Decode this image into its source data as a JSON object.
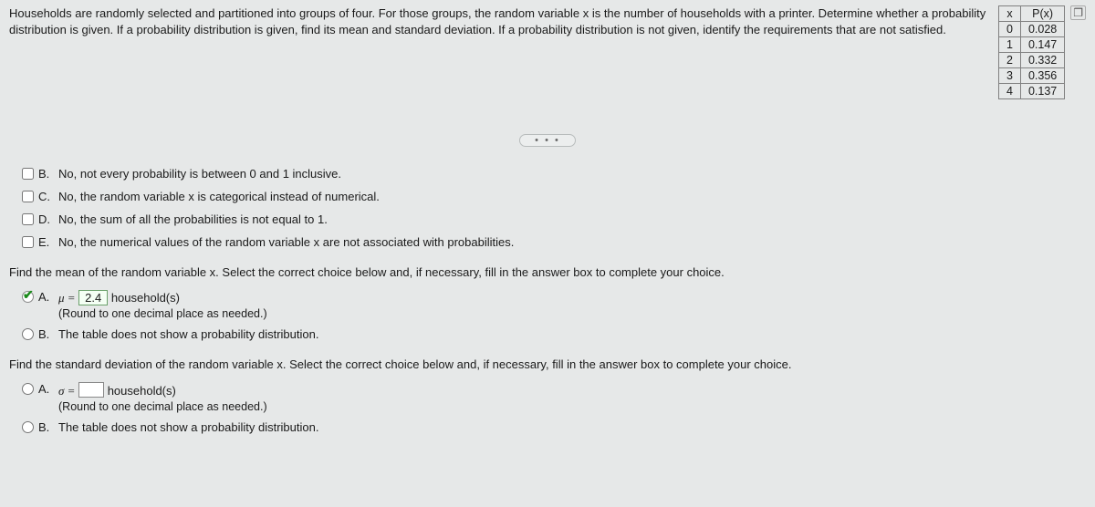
{
  "question": "Households are randomly selected and partitioned into groups of four. For those groups, the random variable x is the number of households with a printer. Determine whether a probability distribution is given. If a probability distribution is given, find its mean and standard deviation. If a probability distribution is not given, identify the requirements that are not satisfied.",
  "table": {
    "headers": {
      "x": "x",
      "px": "P(x)"
    },
    "rows": [
      {
        "x": "0",
        "px": "0.028"
      },
      {
        "x": "1",
        "px": "0.147"
      },
      {
        "x": "2",
        "px": "0.332"
      },
      {
        "x": "3",
        "px": "0.356"
      },
      {
        "x": "4",
        "px": "0.137"
      }
    ]
  },
  "ellipsis": "…",
  "part1_choices": {
    "b": {
      "letter": "B.",
      "text": "No, not every probability is between 0 and 1 inclusive."
    },
    "c": {
      "letter": "C.",
      "text": "No, the random variable x is categorical instead of numerical."
    },
    "d": {
      "letter": "D.",
      "text": "No, the sum of all the probabilities is not equal to 1."
    },
    "e": {
      "letter": "E.",
      "text": "No, the numerical values of the random variable x are not associated with probabilities."
    }
  },
  "mean_section": {
    "prompt": "Find the mean of the random variable x. Select the correct choice below and, if necessary, fill in the answer box to complete your choice.",
    "a": {
      "letter": "A.",
      "prefix": "μ =",
      "value": "2.4",
      "suffix": "household(s)",
      "note": "(Round to one decimal place as needed.)"
    },
    "b": {
      "letter": "B.",
      "text": "The table does not show a probability distribution."
    }
  },
  "sd_section": {
    "prompt": "Find the standard deviation of the random variable x. Select the correct choice below and, if necessary, fill in the answer box to complete your choice.",
    "a": {
      "letter": "A.",
      "prefix": "σ =",
      "suffix": "household(s)",
      "note": "(Round to one decimal place as needed.)"
    },
    "b": {
      "letter": "B.",
      "text": "The table does not show a probability distribution."
    }
  }
}
